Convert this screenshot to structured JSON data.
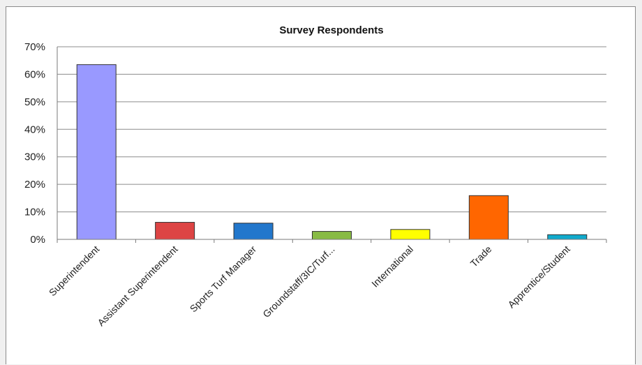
{
  "chart_data": {
    "type": "bar",
    "title": "Survey Respondents",
    "xlabel": "",
    "ylabel": "",
    "categories": [
      "Superintendent",
      "Assistant Superintendent",
      "Sports Turf Manager",
      "Groundstaff/3IC/Turf...",
      "International",
      "Trade",
      "Apprentice/Student"
    ],
    "values": [
      63.5,
      6.2,
      5.9,
      2.9,
      3.6,
      15.9,
      1.7
    ],
    "colors": [
      "#9999ff",
      "#dd4444",
      "#2277cc",
      "#88bb44",
      "#ffff00",
      "#ff6600",
      "#11aacc"
    ],
    "ylim": [
      0,
      70
    ],
    "yticks": [
      "0%",
      "10%",
      "20%",
      "30%",
      "40%",
      "50%",
      "60%",
      "70%"
    ],
    "grid": true,
    "legend": "none"
  }
}
